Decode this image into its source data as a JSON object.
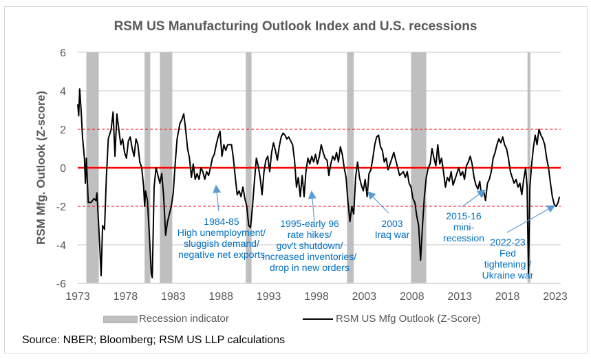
{
  "chart_data": {
    "type": "line",
    "title": "RSM US Manufacturing Outlook Index and U.S. recessions",
    "xlabel": "",
    "ylabel": "RSM Mfg. Outlook (Z-score)",
    "xlim": [
      1973,
      2023.5
    ],
    "ylim": [
      -6,
      6
    ],
    "x_ticks": [
      "1973",
      "1978",
      "1983",
      "1988",
      "1993",
      "1998",
      "2003",
      "2008",
      "2013",
      "2018",
      "2023"
    ],
    "y_ticks": [
      "6",
      "4",
      "2",
      "0",
      "-2",
      "-4",
      "-6"
    ],
    "grid": true,
    "reference_lines": [
      {
        "y": 0,
        "style": "solid",
        "color": "#ff0000"
      },
      {
        "y": 2,
        "style": "dashed",
        "color": "#ff0000"
      },
      {
        "y": -2,
        "style": "dashed",
        "color": "#ff0000"
      }
    ],
    "recessions": [
      [
        1973.9,
        1975.2
      ],
      [
        1980.0,
        1980.6
      ],
      [
        1981.6,
        1982.9
      ],
      [
        1990.6,
        1991.2
      ],
      [
        2001.2,
        2001.9
      ],
      [
        2007.9,
        2009.5
      ],
      [
        2020.1,
        2020.4
      ]
    ],
    "series": [
      {
        "name": "RSM US Mfg Outlook (Z-Score)",
        "color": "#000000",
        "points": [
          [
            1973.0,
            3.3
          ],
          [
            1973.1,
            2.7
          ],
          [
            1973.2,
            4.1
          ],
          [
            1973.35,
            3.0
          ],
          [
            1973.5,
            1.6
          ],
          [
            1973.7,
            0.5
          ],
          [
            1973.8,
            -0.8
          ],
          [
            1973.9,
            0.5
          ],
          [
            1974.1,
            -1.8
          ],
          [
            1974.4,
            -1.8
          ],
          [
            1974.7,
            -1.6
          ],
          [
            1974.9,
            -1.7
          ],
          [
            1975.0,
            -1.3
          ],
          [
            1975.1,
            -2.1
          ],
          [
            1975.3,
            -4.0
          ],
          [
            1975.45,
            -5.6
          ],
          [
            1975.6,
            -3.0
          ],
          [
            1975.8,
            -3.2
          ],
          [
            1976.0,
            -0.5
          ],
          [
            1976.2,
            1.5
          ],
          [
            1976.5,
            2.0
          ],
          [
            1976.7,
            2.9
          ],
          [
            1976.9,
            0.6
          ],
          [
            1977.1,
            2.8
          ],
          [
            1977.3,
            2.0
          ],
          [
            1977.5,
            1.2
          ],
          [
            1977.7,
            1.5
          ],
          [
            1977.9,
            0.8
          ],
          [
            1978.1,
            0.5
          ],
          [
            1978.3,
            1.4
          ],
          [
            1978.5,
            1.6
          ],
          [
            1978.7,
            1.0
          ],
          [
            1978.9,
            0.6
          ],
          [
            1979.1,
            1.5
          ],
          [
            1979.3,
            1.2
          ],
          [
            1979.5,
            0.3
          ],
          [
            1979.7,
            0.0
          ],
          [
            1979.9,
            -1.0
          ],
          [
            1980.0,
            -2.0
          ],
          [
            1980.1,
            -1.2
          ],
          [
            1980.3,
            -1.7
          ],
          [
            1980.5,
            -3.5
          ],
          [
            1980.7,
            -5.5
          ],
          [
            1980.8,
            -5.7
          ],
          [
            1981.0,
            -1.0
          ],
          [
            1981.2,
            0.0
          ],
          [
            1981.4,
            -0.4
          ],
          [
            1981.6,
            -0.8
          ],
          [
            1981.8,
            -0.3
          ],
          [
            1982.0,
            -1.5
          ],
          [
            1982.2,
            -3.5
          ],
          [
            1982.4,
            -2.8
          ],
          [
            1982.6,
            -2.4
          ],
          [
            1982.8,
            -2.0
          ],
          [
            1983.0,
            -1.3
          ],
          [
            1983.2,
            0.2
          ],
          [
            1983.4,
            1.5
          ],
          [
            1983.7,
            2.3
          ],
          [
            1983.9,
            2.5
          ],
          [
            1984.1,
            2.8
          ],
          [
            1984.3,
            2.0
          ],
          [
            1984.5,
            1.0
          ],
          [
            1984.7,
            0.5
          ],
          [
            1984.9,
            -0.5
          ],
          [
            1985.1,
            0.2
          ],
          [
            1985.3,
            -0.6
          ],
          [
            1985.5,
            -0.3
          ],
          [
            1985.7,
            -0.6
          ],
          [
            1985.9,
            0.0
          ],
          [
            1986.1,
            -0.2
          ],
          [
            1986.3,
            -0.6
          ],
          [
            1986.5,
            -0.2
          ],
          [
            1986.7,
            -0.4
          ],
          [
            1986.9,
            0.0
          ],
          [
            1987.1,
            0.5
          ],
          [
            1987.3,
            0.7
          ],
          [
            1987.5,
            1.2
          ],
          [
            1987.7,
            1.6
          ],
          [
            1987.9,
            1.9
          ],
          [
            1988.1,
            0.6
          ],
          [
            1988.3,
            1.2
          ],
          [
            1988.5,
            0.9
          ],
          [
            1988.7,
            1.2
          ],
          [
            1988.9,
            1.2
          ],
          [
            1989.1,
            1.2
          ],
          [
            1989.3,
            0.5
          ],
          [
            1989.5,
            -0.5
          ],
          [
            1989.7,
            -1.4
          ],
          [
            1989.9,
            -1.2
          ],
          [
            1990.1,
            -1.5
          ],
          [
            1990.3,
            -1.0
          ],
          [
            1990.5,
            -1.6
          ],
          [
            1990.7,
            -2.0
          ],
          [
            1990.9,
            -3.0
          ],
          [
            1991.1,
            -3.1
          ],
          [
            1991.3,
            -2.0
          ],
          [
            1991.5,
            -0.7
          ],
          [
            1991.7,
            0.5
          ],
          [
            1991.9,
            0.1
          ],
          [
            1992.1,
            -0.5
          ],
          [
            1992.3,
            -1.4
          ],
          [
            1992.5,
            -0.2
          ],
          [
            1992.7,
            0.4
          ],
          [
            1992.9,
            0.6
          ],
          [
            1993.1,
            -0.2
          ],
          [
            1993.3,
            0.8
          ],
          [
            1993.5,
            1.3
          ],
          [
            1993.7,
            0.9
          ],
          [
            1993.9,
            0.4
          ],
          [
            1994.1,
            1.1
          ],
          [
            1994.3,
            1.6
          ],
          [
            1994.5,
            1.8
          ],
          [
            1994.7,
            1.7
          ],
          [
            1994.9,
            1.5
          ],
          [
            1995.1,
            1.6
          ],
          [
            1995.3,
            1.4
          ],
          [
            1995.5,
            1.2
          ],
          [
            1995.7,
            0.4
          ],
          [
            1995.9,
            -1.0
          ],
          [
            1996.1,
            -0.5
          ],
          [
            1996.3,
            -1.5
          ],
          [
            1996.5,
            -0.4
          ],
          [
            1996.7,
            -1.5
          ],
          [
            1996.9,
            -0.2
          ],
          [
            1997.1,
            0.5
          ],
          [
            1997.3,
            0.2
          ],
          [
            1997.5,
            0.6
          ],
          [
            1997.7,
            0.3
          ],
          [
            1997.9,
            0.7
          ],
          [
            1998.1,
            0.2
          ],
          [
            1998.3,
            0.6
          ],
          [
            1998.5,
            1.2
          ],
          [
            1998.7,
            0.8
          ],
          [
            1998.9,
            0.5
          ],
          [
            1999.1,
            0.4
          ],
          [
            1999.3,
            -0.4
          ],
          [
            1999.5,
            0.2
          ],
          [
            1999.7,
            0.6
          ],
          [
            1999.9,
            0.4
          ],
          [
            2000.1,
            0.8
          ],
          [
            2000.3,
            0.3
          ],
          [
            2000.5,
            1.1
          ],
          [
            2000.7,
            0.7
          ],
          [
            2000.9,
            0.0
          ],
          [
            2001.1,
            -0.5
          ],
          [
            2001.3,
            -1.8
          ],
          [
            2001.5,
            -2.8
          ],
          [
            2001.7,
            -2.0
          ],
          [
            2001.9,
            -2.4
          ],
          [
            2002.1,
            -0.5
          ],
          [
            2002.3,
            0.3
          ],
          [
            2002.5,
            -0.5
          ],
          [
            2002.7,
            -0.9
          ],
          [
            2002.9,
            -1.2
          ],
          [
            2003.1,
            -0.6
          ],
          [
            2003.3,
            -1.5
          ],
          [
            2003.5,
            -0.3
          ],
          [
            2003.7,
            -0.1
          ],
          [
            2003.9,
            0.5
          ],
          [
            2004.1,
            1.2
          ],
          [
            2004.3,
            1.6
          ],
          [
            2004.5,
            1.7
          ],
          [
            2004.7,
            1.1
          ],
          [
            2004.9,
            0.9
          ],
          [
            2005.1,
            0.3
          ],
          [
            2005.3,
            0.5
          ],
          [
            2005.5,
            -0.1
          ],
          [
            2005.7,
            0.2
          ],
          [
            2005.9,
            0.5
          ],
          [
            2006.1,
            0.8
          ],
          [
            2006.3,
            0.4
          ],
          [
            2006.5,
            0.0
          ],
          [
            2006.7,
            -0.4
          ],
          [
            2006.9,
            -0.3
          ],
          [
            2007.1,
            -0.2
          ],
          [
            2007.3,
            -0.5
          ],
          [
            2007.5,
            -0.2
          ],
          [
            2007.7,
            -0.8
          ],
          [
            2007.9,
            -1.0
          ],
          [
            2008.1,
            -1.6
          ],
          [
            2008.3,
            -1.8
          ],
          [
            2008.5,
            -2.5
          ],
          [
            2008.7,
            -3.0
          ],
          [
            2008.9,
            -4.8
          ],
          [
            2009.1,
            -3.0
          ],
          [
            2009.3,
            -1.5
          ],
          [
            2009.5,
            -0.5
          ],
          [
            2009.7,
            0.0
          ],
          [
            2009.9,
            0.2
          ],
          [
            2010.1,
            1.0
          ],
          [
            2010.3,
            0.5
          ],
          [
            2010.5,
            0.1
          ],
          [
            2010.7,
            1.2
          ],
          [
            2010.9,
            0.2
          ],
          [
            2011.1,
            0.5
          ],
          [
            2011.3,
            -0.2
          ],
          [
            2011.5,
            -1.0
          ],
          [
            2011.7,
            -0.5
          ],
          [
            2011.9,
            -0.7
          ],
          [
            2012.1,
            -0.2
          ],
          [
            2012.3,
            -0.9
          ],
          [
            2012.5,
            -0.6
          ],
          [
            2012.7,
            -0.3
          ],
          [
            2012.9,
            0.0
          ],
          [
            2013.1,
            -0.4
          ],
          [
            2013.3,
            -0.2
          ],
          [
            2013.5,
            -0.6
          ],
          [
            2013.7,
            0.1
          ],
          [
            2013.9,
            0.3
          ],
          [
            2014.1,
            0.6
          ],
          [
            2014.3,
            0.2
          ],
          [
            2014.5,
            -0.5
          ],
          [
            2014.7,
            -0.9
          ],
          [
            2014.9,
            -1.1
          ],
          [
            2015.1,
            -0.7
          ],
          [
            2015.3,
            -1.5
          ],
          [
            2015.5,
            -1.2
          ],
          [
            2015.7,
            -1.7
          ],
          [
            2015.9,
            -0.8
          ],
          [
            2016.1,
            -0.6
          ],
          [
            2016.3,
            -0.2
          ],
          [
            2016.5,
            0.5
          ],
          [
            2016.7,
            0.8
          ],
          [
            2016.9,
            1.2
          ],
          [
            2017.1,
            1.5
          ],
          [
            2017.3,
            1.3
          ],
          [
            2017.5,
            1.6
          ],
          [
            2017.7,
            1.2
          ],
          [
            2017.9,
            1.0
          ],
          [
            2018.1,
            0.5
          ],
          [
            2018.3,
            -0.2
          ],
          [
            2018.5,
            -0.5
          ],
          [
            2018.7,
            -0.8
          ],
          [
            2018.9,
            -0.6
          ],
          [
            2019.1,
            -1.0
          ],
          [
            2019.3,
            -0.8
          ],
          [
            2019.5,
            -1.4
          ],
          [
            2019.7,
            -0.6
          ],
          [
            2019.9,
            0.0
          ],
          [
            2020.05,
            -1.0
          ],
          [
            2020.2,
            -5.5
          ],
          [
            2020.35,
            -1.0
          ],
          [
            2020.5,
            0.0
          ],
          [
            2020.7,
            1.0
          ],
          [
            2020.9,
            1.7
          ],
          [
            2021.1,
            1.2
          ],
          [
            2021.3,
            2.0
          ],
          [
            2021.5,
            1.7
          ],
          [
            2021.7,
            1.5
          ],
          [
            2021.9,
            1.2
          ],
          [
            2022.1,
            0.5
          ],
          [
            2022.3,
            0.0
          ],
          [
            2022.5,
            -0.8
          ],
          [
            2022.7,
            -1.5
          ],
          [
            2022.9,
            -1.9
          ],
          [
            2023.1,
            -2.0
          ],
          [
            2023.3,
            -1.8
          ],
          [
            2023.45,
            -1.5
          ]
        ]
      }
    ],
    "legend": [
      {
        "label": "Recession indicator",
        "kind": "band",
        "color": "#bfbfbf"
      },
      {
        "label": "RSM US Mfg Outlook (Z-Score)",
        "kind": "line",
        "color": "#000000"
      }
    ],
    "legend_placement": "bottom",
    "annotations": [
      {
        "lines": [
          "1984-85",
          "High unemployment/",
          "sluggish demand/",
          "negative net exports"
        ],
        "arrow_to": [
          1987.5,
          -1.0
        ]
      },
      {
        "lines": [
          "1995-early 96",
          "rate hikes/",
          "gov't shutdown/",
          "increased inventories/",
          "drop in new orders"
        ],
        "arrow_to": [
          1997.5,
          -1.3
        ]
      },
      {
        "lines": [
          "2003",
          "Iraq war"
        ],
        "arrow_to": [
          2003.5,
          -1.3
        ]
      },
      {
        "lines": [
          "2015-16",
          "mini-",
          "recession"
        ],
        "arrow_to": [
          2015.5,
          -1.2
        ]
      },
      {
        "lines": [
          "2022-23",
          "Fed",
          "tightening /",
          "Ukraine war"
        ],
        "arrow_to": [
          2022.8,
          -2.0
        ]
      }
    ],
    "source": "Source: NBER; Bloomberg; RSM US LLP calculations"
  }
}
